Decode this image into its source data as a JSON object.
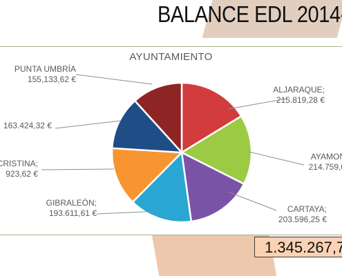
{
  "page_title": "BALANCE EDL 2014-",
  "total": "1.345.267,7",
  "chart_data": {
    "type": "pie",
    "title": "AYUNTAMIENTO",
    "slices": [
      {
        "name": "ALJARAQUE;",
        "value_label": "215.819,28 €",
        "value": 215819.28,
        "color": "#d23c3c"
      },
      {
        "name": "AYAMON",
        "value_label": "214.759,0",
        "value": 214759.0,
        "color": "#9cca44"
      },
      {
        "name": "CARTAYA;",
        "value_label": "203.596,25 €",
        "value": 203596.25,
        "color": "#7b53a6"
      },
      {
        "name": "GIBRALEÓN;",
        "value_label": "193.611,61 €",
        "value": 193611.61,
        "color": "#2aa6d2"
      },
      {
        "name": "CRISTINA;",
        "value_label": "923,62 €",
        "value": null,
        "color": "#f89530"
      },
      {
        "name": "",
        "value_label": "163.424,32 €",
        "value": 163424.32,
        "color": "#1f4e86"
      },
      {
        "name": "PUNTA UMBRÍA",
        "value_label": "155,133,62 €",
        "value": 155133.62,
        "color": "#8e2424"
      }
    ]
  }
}
